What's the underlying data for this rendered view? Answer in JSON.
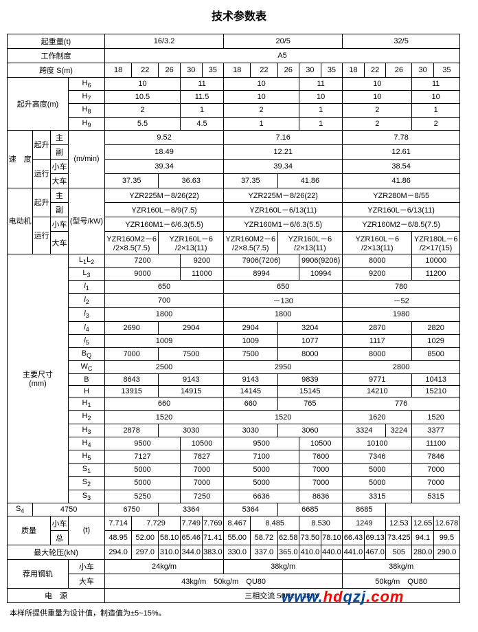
{
  "title": "技术参数表",
  "hdrs": {
    "cap": "起重量(t)",
    "cap1": "16/3.2",
    "cap2": "20/5",
    "cap3": "32/5",
    "duty": "工作制度",
    "dutyV": "A5",
    "span": "跨度 S(m)"
  },
  "spans": [
    "18",
    "22",
    "26",
    "30",
    "35",
    "18",
    "22",
    "26",
    "30",
    "35",
    "18",
    "22",
    "26",
    "30",
    "35"
  ],
  "lh": {
    "lbl": "起升高度(m)",
    "h6": "H",
    "h6s": "6",
    "h6_1": "10",
    "h6_2": "11",
    "h6_3": "10",
    "h6_4": "11",
    "h6_5": "10",
    "h6_6": "11",
    "h7": "H",
    "h7s": "7",
    "h7_1": "10.5",
    "h7_2": "11.5",
    "h7_3": "10",
    "h7_4": "10",
    "h7_5": "10",
    "h7_6": "10",
    "h8": "H",
    "h8s": "8",
    "h8_1": "2",
    "h8_2": "1",
    "h8_3": "2",
    "h8_4": "1",
    "h8_5": "2",
    "h8_6": "1",
    "h9": "H",
    "h9s": "9",
    "h9_1": "5.5",
    "h9_2": "4.5",
    "h9_3": "1",
    "h9_4": "1",
    "h9_5": "2",
    "h9_6": "2"
  },
  "spd": {
    "lbl": "速　度",
    "unit": "(m/min)",
    "lf": "起升",
    "main": "主",
    "aux": "副",
    "tv": "运行",
    "tr": "小车",
    "br": "大车",
    "m1": "9.52",
    "m2": "7.16",
    "m3": "7.78",
    "a1": "18.49",
    "a2": "12.21",
    "a3": "12.61",
    "t1": "39.34",
    "t2": "39.34",
    "t3": "38.54",
    "b1": "37.35",
    "b2": "36.63",
    "b3": "37.35",
    "b4": "41.86",
    "b5": "41.86"
  },
  "mot": {
    "lbl": "电动机",
    "unit": "(型号/kW)",
    "lf": "起升",
    "main": "主",
    "aux": "副",
    "tv": "运行",
    "tr": "小车",
    "br": "大车",
    "m1": "YZR225M－8/26(22)",
    "m2": "YZR225M－8/26(22)",
    "m3": "YZR280M－8/55",
    "a1": "YZR160L－8/9(7.5)",
    "a2": "YZR160L－6/13(11)",
    "a3": "YZR160L－6/13(11)",
    "t1": "YZR160M1－6/6.3(5.5)",
    "t2": "YZR160M1－6/6.3(5.5)",
    "t3": "YZR160M2－6/8.5(7.5)",
    "b1": "YZR160M2－6",
    "b1b": "/2×8.5(7.5)",
    "b2": "YZR160L－6",
    "b2b": "/2×13(11)",
    "b3": "YZR160M2－6",
    "b3b": "/2×8.5(7.5)",
    "b4": "YZR160L－6",
    "b4b": "/2×13(11)",
    "b5": "YZR160L－6",
    "b5b": "/2×13(11)",
    "b6": "YZR180L－6",
    "b6b": "/2×17(15)"
  },
  "dim": {
    "lbl": "主要尺寸",
    "unit": "(mm)",
    "L12": "L",
    "L12s1": "1",
    "L12s2": "2",
    "L12_1": "7200",
    "L12_2": "9200",
    "L12_3": "7906(7206)",
    "L12_4": "9906(9206)",
    "L12_5": "8000",
    "L12_6": "10000",
    "L3": "L",
    "L3s": "3",
    "L3_1": "9000",
    "L3_2": "11000",
    "L3_3": "8994",
    "L3_4": "10994",
    "L3_5": "9200",
    "L3_6": "11200",
    "l1": "l",
    "l1s": "1",
    "l1_1": "650",
    "l1_2": "650",
    "l1_3": "780",
    "l2": "l",
    "l2s": "2",
    "l2_1": "700",
    "l2_2": "－130",
    "l2_3": "－52",
    "l3": "l",
    "l3s": "3",
    "l3_1": "1800",
    "l3_2": "1800",
    "l3_3": "1980",
    "l4": "l",
    "l4s": "4",
    "l4_1": "2690",
    "l4_2": "2904",
    "l4_3": "2904",
    "l4_4": "3204",
    "l4_5": "2870",
    "l4_6": "2820",
    "l5": "l",
    "l5s": "5",
    "l5_1": "1009",
    "l5_2": "1009",
    "l5_3": "1077",
    "l5_4": "1117",
    "l5_5": "1029",
    "BQ": "B",
    "BQs": "Q",
    "BQ_1": "7000",
    "BQ_2": "7500",
    "BQ_3": "7500",
    "BQ_4": "8000",
    "BQ_5": "8000",
    "BQ_6": "8500",
    "WC": "W",
    "WCs": "C",
    "WC_1": "2500",
    "WC_2": "2950",
    "WC_3": "2800",
    "B": "B",
    "B_1": "8643",
    "B_2": "9143",
    "B_3": "9143",
    "B_4": "9839",
    "B_5": "9771",
    "B_6": "10413",
    "H": "H",
    "H_1": "13915",
    "H_2": "14915",
    "H_3": "14145",
    "H_4": "15145",
    "H_5": "14210",
    "H_6": "15210",
    "H1": "H",
    "H1s": "1",
    "H1_1": "660",
    "H1_2": "660",
    "H1_3": "765",
    "H1_4": "776",
    "H2": "H",
    "H2s": "2",
    "H2_1": "1520",
    "H2_2": "1520",
    "H2_3": "1620",
    "H2_4": "1520",
    "H3": "H",
    "H3s": "3",
    "H3_1": "2878",
    "H3_2": "3030",
    "H3_3": "3030",
    "H3_4": "3060",
    "H3_5": "3324",
    "H3_6": "3224",
    "H3_7": "3377",
    "H4": "H",
    "H4s": "4",
    "H4_1": "9500",
    "H4_2": "10500",
    "H4_3": "9500",
    "H4_4": "10500",
    "H4_5": "10100",
    "H4_6": "11100",
    "H5": "H",
    "H5s": "5",
    "H5_1": "7127",
    "H5_2": "7827",
    "H5_3": "7100",
    "H5_4": "7600",
    "H5_5": "7346",
    "H5_6": "7846",
    "S1": "S",
    "S1s": "1",
    "S1_1": "5000",
    "S1_2": "7000",
    "S1_3": "5000",
    "S1_4": "7000",
    "S1_5": "5000",
    "S1_6": "7000",
    "S2": "S",
    "S2s": "2",
    "S2_1": "5000",
    "S2_2": "7000",
    "S2_3": "5000",
    "S2_4": "7000",
    "S2_5": "5000",
    "S2_6": "7000",
    "S3": "S",
    "S3s": "3",
    "S3_1": "5250",
    "S3_2": "7250",
    "S3_3": "6636",
    "S3_4": "8636",
    "S3_5": "3315",
    "S3_6": "5315",
    "S4": "S",
    "S4s": "4",
    "S4_1": "4750",
    "S4_2": "6750",
    "S4_3": "3364",
    "S4_4": "5364",
    "S4_5": "6685",
    "S4_6": "8685"
  },
  "mass": {
    "lbl": "质量",
    "unit": "(t)",
    "tr": "小车",
    "tt": "总",
    "t": [
      "7.714",
      "7.729",
      "7.749",
      "7.769",
      "8.467",
      "8.485",
      "8.530",
      "1249",
      "12.53",
      "12.65",
      "12.678"
    ],
    "tot": [
      "48.95",
      "52.00",
      "58.10",
      "65.46",
      "71.41",
      "55.00",
      "58.72",
      "62.58",
      "73.50",
      "78.10",
      "66.43",
      "69.13",
      "73.425",
      "94.1",
      "99.5"
    ]
  },
  "wp": {
    "lbl": "最大轮压(kN)",
    "v": [
      "294.0",
      "297.0",
      "310.0",
      "344.0",
      "383.0",
      "330.0",
      "337.0",
      "365.0",
      "410.0",
      "440.0",
      "441.0",
      "467.0",
      "505",
      "280.0",
      "290.0"
    ]
  },
  "rail": {
    "lbl": "荐用钢轨",
    "tr": "小车",
    "br": "大车",
    "t1": "24kg/m",
    "t2": "38kg/m",
    "t3": "38kg/m",
    "b1": "43kg/m　50kg/m　QU80",
    "b2": "50kg/m　QU80"
  },
  "pow": {
    "lbl": "电　源",
    "v": "三相交流 50Hz　380V"
  },
  "foot": "本样所提供重量为设计值，制造值为±5~15%。",
  "wm": {
    "p1": "www.",
    "p2": "hd",
    "p3": "qzj",
    "p4": ".com"
  }
}
